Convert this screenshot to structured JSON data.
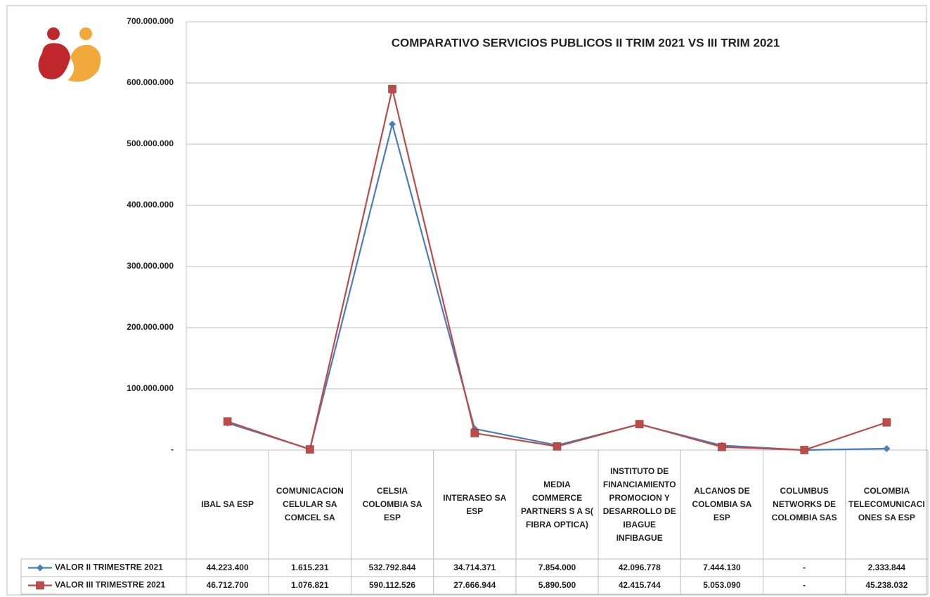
{
  "chart_data": {
    "type": "line",
    "title": "COMPARATIVO SERVICIOS PUBLICOS II  TRIM 2021  VS  III  TRIM 2021",
    "categories": [
      "IBAL SA ESP",
      "COMUNICACION CELULAR SA COMCEL SA",
      "CELSIA COLOMBIA SA ESP",
      "INTERASEO SA ESP",
      "MEDIA COMMERCE PARTNERS S A S( FIBRA OPTICA)",
      "INSTITUTO DE FINANCIAMIENTO PROMOCION Y DESARROLLO DE IBAGUE INFIBAGUE",
      "ALCANOS DE COLOMBIA SA ESP",
      "COLUMBUS NETWORKS DE COLOMBIA SAS",
      "COLOMBIA TELECOMUNICACIONES SA ESP"
    ],
    "series": [
      {
        "name": "VALOR II TRIMESTRE 2021",
        "color": "#4a7ebb",
        "marker": "diamond",
        "values": [
          44223400,
          1615231,
          532792844,
          34714371,
          7854000,
          42096778,
          7444130,
          0,
          2333844
        ],
        "value_labels": [
          "44.223.400",
          "1.615.231",
          "532.792.844",
          "34.714.371",
          "7.854.000",
          "42.096.778",
          "7.444.130",
          "-",
          "2.333.844"
        ]
      },
      {
        "name": "VALOR III TRIMESTRE 2021",
        "color": "#be4b48",
        "marker": "square",
        "values": [
          46712700,
          1076821,
          590112526,
          27666944,
          5890500,
          42415744,
          5053090,
          0,
          45238032
        ],
        "value_labels": [
          "46.712.700",
          "1.076.821",
          "590.112.526",
          "27.666.944",
          "5.890.500",
          "42.415.744",
          "5.053.090",
          "-",
          "45.238.032"
        ]
      }
    ],
    "ylim": [
      0,
      700000000
    ],
    "yticks": [
      {
        "value": 0,
        "label": "-"
      },
      {
        "value": 100000000,
        "label": "100.000.000"
      },
      {
        "value": 200000000,
        "label": "200.000.000"
      },
      {
        "value": 300000000,
        "label": "300.000.000"
      },
      {
        "value": 400000000,
        "label": "400.000.000"
      },
      {
        "value": 500000000,
        "label": "500.000.000"
      },
      {
        "value": 600000000,
        "label": "600.000.000"
      },
      {
        "value": 700000000,
        "label": "700.000.000"
      }
    ],
    "grid": true
  }
}
